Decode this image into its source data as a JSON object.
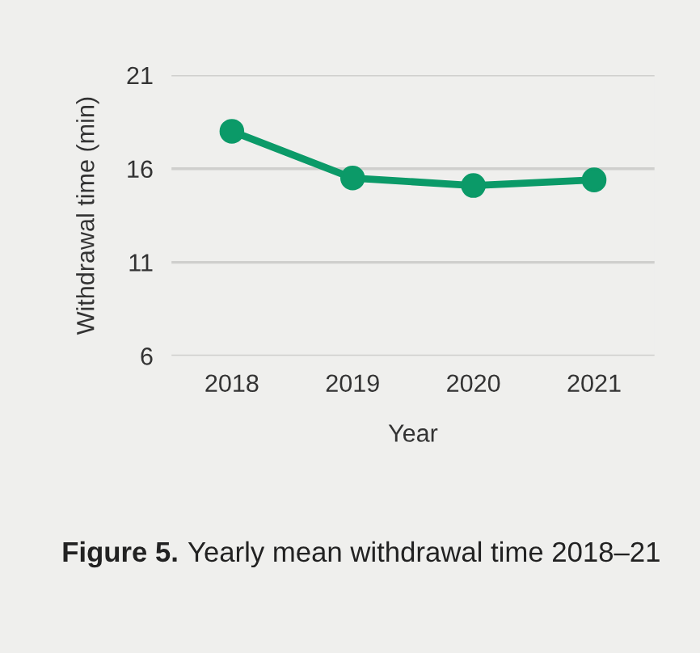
{
  "chart_data": {
    "type": "line",
    "title": "Figure 5.",
    "subtitle": "Yearly mean withdrawal time 2018–21",
    "xlabel": "Year",
    "ylabel": "Withdrawal time (min)",
    "categories": [
      "2018",
      "2019",
      "2020",
      "2021"
    ],
    "series": [
      {
        "color": "#0b9a68",
        "values": [
          18.0,
          15.5,
          15.1,
          15.4
        ]
      }
    ],
    "ylim": [
      6,
      21
    ],
    "yticks": [
      6,
      11,
      16,
      21
    ],
    "grid": "y",
    "marker": "circle",
    "line_style": "solid",
    "legend": false
  }
}
